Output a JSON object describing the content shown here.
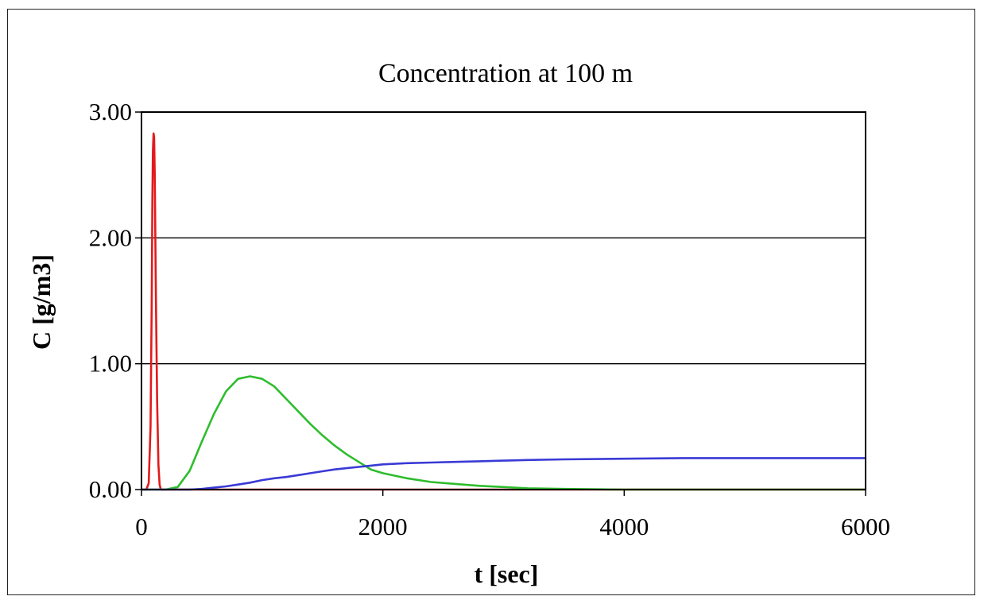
{
  "chart_data": {
    "type": "line",
    "title": "Concentration at 100 m",
    "xlabel": "t [sec]",
    "ylabel": "C [g/m3]",
    "xlim": [
      0,
      6000
    ],
    "ylim": [
      0,
      3
    ],
    "x_ticks": [
      "0",
      "2000",
      "4000",
      "6000"
    ],
    "y_ticks": [
      "0.00",
      "1.00",
      "2.00",
      "3.00"
    ],
    "grid": "horizontal",
    "legend": "none",
    "series": [
      {
        "color": "#e31a1c",
        "x": [
          0,
          40,
          60,
          75,
          85,
          90,
          95,
          100,
          105,
          110,
          120,
          130,
          140,
          150,
          160,
          200,
          400,
          1000,
          3000,
          6000
        ],
        "y": [
          0,
          0,
          0.05,
          0.5,
          1.5,
          2.3,
          2.7,
          2.83,
          2.8,
          2.5,
          1.5,
          0.7,
          0.2,
          0.04,
          0,
          0,
          0,
          0,
          0,
          0
        ]
      },
      {
        "color": "#2ebd2e",
        "x": [
          0,
          200,
          300,
          400,
          500,
          600,
          700,
          800,
          900,
          1000,
          1100,
          1200,
          1300,
          1400,
          1500,
          1600,
          1700,
          1800,
          1900,
          2000,
          2200,
          2400,
          2600,
          2800,
          3000,
          3200,
          3500,
          3800,
          4000,
          5000,
          6000
        ],
        "y": [
          0,
          0,
          0.02,
          0.15,
          0.38,
          0.6,
          0.78,
          0.88,
          0.9,
          0.88,
          0.82,
          0.72,
          0.62,
          0.52,
          0.43,
          0.35,
          0.28,
          0.22,
          0.16,
          0.13,
          0.09,
          0.06,
          0.045,
          0.03,
          0.02,
          0.01,
          0.005,
          0.002,
          0,
          0,
          0
        ]
      },
      {
        "color": "#3a3ad6",
        "x": [
          0,
          400,
          500,
          600,
          700,
          800,
          900,
          1000,
          1100,
          1200,
          1300,
          1400,
          1500,
          1600,
          1700,
          1800,
          1900,
          2000,
          2200,
          2400,
          2600,
          2800,
          3000,
          3200,
          3500,
          4000,
          4500,
          5000,
          5500,
          6000
        ],
        "y": [
          0,
          0,
          0.005,
          0.015,
          0.025,
          0.04,
          0.055,
          0.075,
          0.09,
          0.1,
          0.115,
          0.13,
          0.145,
          0.16,
          0.17,
          0.18,
          0.19,
          0.2,
          0.21,
          0.215,
          0.22,
          0.225,
          0.23,
          0.235,
          0.24,
          0.245,
          0.25,
          0.25,
          0.25,
          0.25
        ]
      }
    ]
  }
}
